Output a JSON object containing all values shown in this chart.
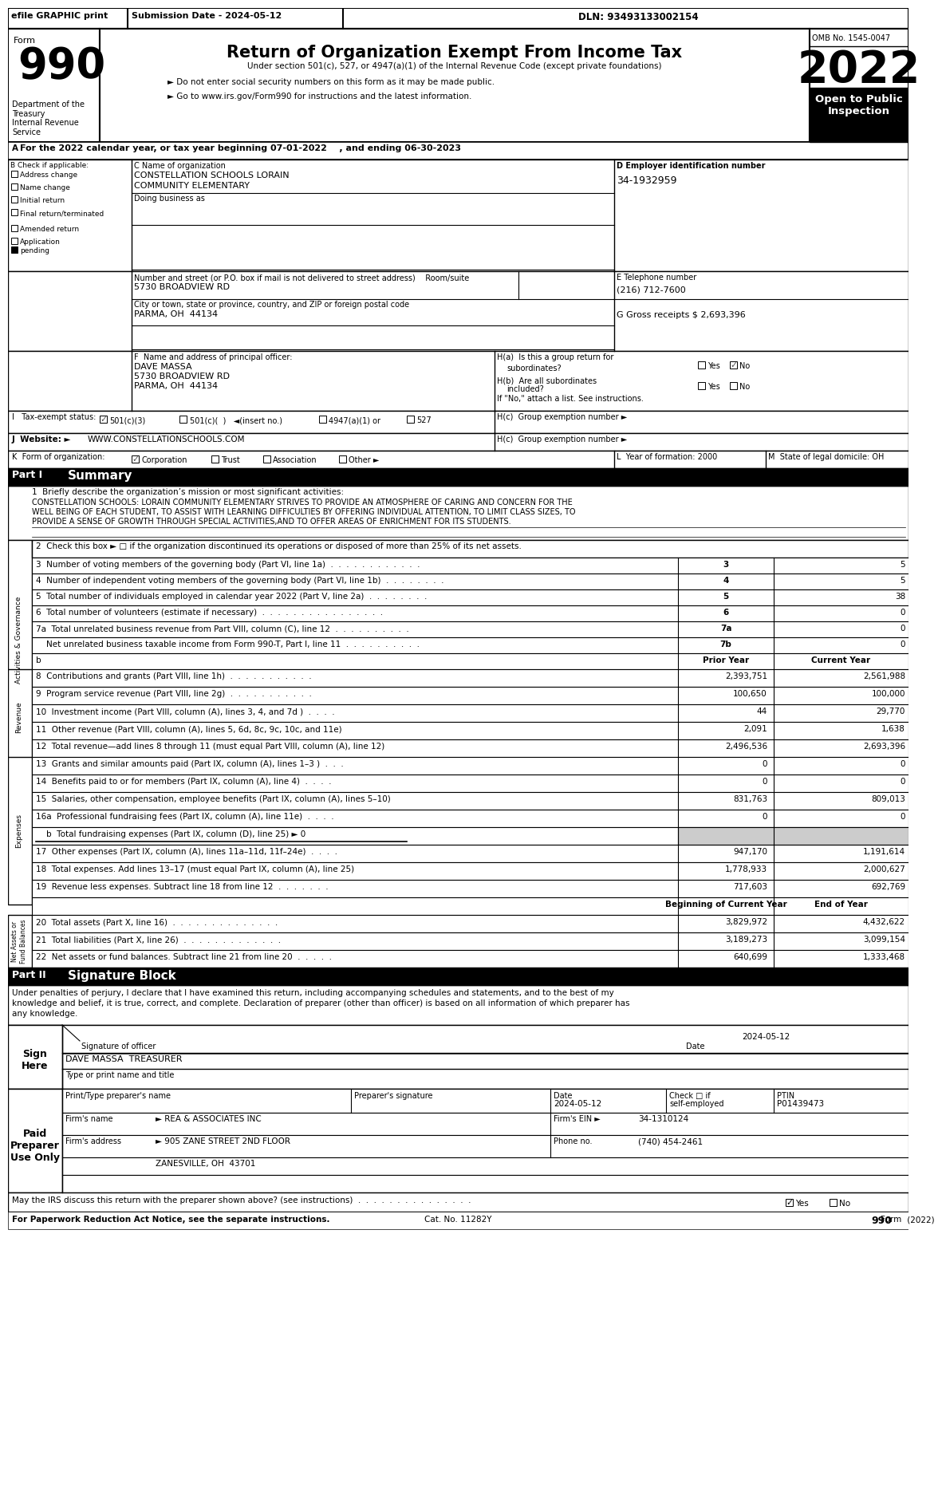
{
  "header_efile": "efile GRAPHIC print",
  "header_submission": "Submission Date - 2024-05-12",
  "header_dln": "DLN: 93493133002154",
  "form_title": "Return of Organization Exempt From Income Tax",
  "subtitle1": "Under section 501(c), 527, or 4947(a)(1) of the Internal Revenue Code (except private foundations)",
  "subtitle2": "► Do not enter social security numbers on this form as it may be made public.",
  "subtitle3": "► Go to www.irs.gov/Form990 for instructions and the latest information.",
  "omb": "OMB No. 1545-0047",
  "year": "2022",
  "open_to_public": "Open to Public\nInspection",
  "dept": "Department of the\nTreasury\nInternal Revenue\nService",
  "line_A": "For the 2022 calendar year, or tax year beginning 07-01-2022    , and ending 06-30-2023",
  "org_name1": "CONSTELLATION SCHOOLS LORAIN",
  "org_name2": "COMMUNITY ELEMENTARY",
  "ein": "34-1932959",
  "street": "5730 BROADVIEW RD",
  "phone": "(216) 712-7600",
  "city": "PARMA, OH  44134",
  "G_label": "G Gross receipts $ 2,693,396",
  "officer_name": "DAVE MASSA",
  "officer_addr1": "5730 BROADVIEW RD",
  "officer_addr2": "PARMA, OH  44134",
  "part1_title": "Part I",
  "part1_summary": "Summary",
  "activity_label": "1  Briefly describe the organization’s mission or most significant activities:",
  "activity_line1": "CONSTELLATION SCHOOLS: LORAIN COMMUNITY ELEMENTARY STRIVES TO PROVIDE AN ATMOSPHERE OF CARING AND CONCERN FOR THE",
  "activity_line2": "WELL BEING OF EACH STUDENT, TO ASSIST WITH LEARNING DIFFICULTIES BY OFFERING INDIVIDUAL ATTENTION, TO LIMIT CLASS SIZES, TO",
  "activity_line3": "PROVIDE A SENSE OF GROWTH THROUGH SPECIAL ACTIVITIES,AND TO OFFER AREAS OF ENRICHMENT FOR ITS STUDENTS.",
  "line2": "2  Check this box ► □ if the organization discontinued its operations or disposed of more than 25% of its net assets.",
  "line3t": "3  Number of voting members of the governing body (Part VI, line 1a)  .  .  .  .  .  .  .  .  .  .  .  .",
  "line3v": "5",
  "line4t": "4  Number of independent voting members of the governing body (Part VI, line 1b)  .  .  .  .  .  .  .  .",
  "line4v": "5",
  "line5t": "5  Total number of individuals employed in calendar year 2022 (Part V, line 2a)  .  .  .  .  .  .  .  .",
  "line5v": "38",
  "line6t": "6  Total number of volunteers (estimate if necessary)  .  .  .  .  .  .  .  .  .  .  .  .  .  .  .  .",
  "line6v": "0",
  "line7at": "7a  Total unrelated business revenue from Part VIII, column (C), line 12  .  .  .  .  .  .  .  .  .  .",
  "line7av": "0",
  "line7bt": "    Net unrelated business taxable income from Form 990-T, Part I, line 11  .  .  .  .  .  .  .  .  .  .",
  "line7bv": "0",
  "col_prior": "Prior Year",
  "col_current": "Current Year",
  "line8t": "8  Contributions and grants (Part VIII, line 1h)  .  .  .  .  .  .  .  .  .  .  .",
  "line8p": "2,393,751",
  "line8c": "2,561,988",
  "line9t": "9  Program service revenue (Part VIII, line 2g)  .  .  .  .  .  .  .  .  .  .  .",
  "line9p": "100,650",
  "line9c": "100,000",
  "line10t": "10  Investment income (Part VIII, column (A), lines 3, 4, and 7d )  .  .  .  .",
  "line10p": "44",
  "line10c": "29,770",
  "line11t": "11  Other revenue (Part VIII, column (A), lines 5, 6d, 8c, 9c, 10c, and 11e)",
  "line11p": "2,091",
  "line11c": "1,638",
  "line12t": "12  Total revenue—add lines 8 through 11 (must equal Part VIII, column (A), line 12)",
  "line12p": "2,496,536",
  "line12c": "2,693,396",
  "line13t": "13  Grants and similar amounts paid (Part IX, column (A), lines 1–3 )  .  .  .",
  "line13p": "0",
  "line13c": "0",
  "line14t": "14  Benefits paid to or for members (Part IX, column (A), line 4)  .  .  .  .",
  "line14p": "0",
  "line14c": "0",
  "line15t": "15  Salaries, other compensation, employee benefits (Part IX, column (A), lines 5–10)",
  "line15p": "831,763",
  "line15c": "809,013",
  "line16at": "16a  Professional fundraising fees (Part IX, column (A), line 11e)  .  .  .  .",
  "line16ap": "0",
  "line16ac": "0",
  "line16bt": "    b  Total fundraising expenses (Part IX, column (D), line 25) ► 0",
  "line17t": "17  Other expenses (Part IX, column (A), lines 11a–11d, 11f–24e)  .  .  .  .",
  "line17p": "947,170",
  "line17c": "1,191,614",
  "line18t": "18  Total expenses. Add lines 13–17 (must equal Part IX, column (A), line 25)",
  "line18p": "1,778,933",
  "line18c": "2,000,627",
  "line19t": "19  Revenue less expenses. Subtract line 18 from line 12  .  .  .  .  .  .  .",
  "line19p": "717,603",
  "line19c": "692,769",
  "col_beginning": "Beginning of Current Year",
  "col_end": "End of Year",
  "line20t": "20  Total assets (Part X, line 16)  .  .  .  .  .  .  .  .  .  .  .  .  .  .",
  "line20b": "3,829,972",
  "line20e": "4,432,622",
  "line21t": "21  Total liabilities (Part X, line 26)  .  .  .  .  .  .  .  .  .  .  .  .  .",
  "line21b": "3,189,273",
  "line21e": "3,099,154",
  "line22t": "22  Net assets or fund balances. Subtract line 21 from line 20  .  .  .  .  .",
  "line22b": "640,699",
  "line22e": "1,333,468",
  "part2_title": "Part II",
  "part2_summary": "Signature Block",
  "sig_text1": "Under penalties of perjury, I declare that I have examined this return, including accompanying schedules and statements, and to the best of my",
  "sig_text2": "knowledge and belief, it is true, correct, and complete. Declaration of preparer (other than officer) is based on all information of which preparer has",
  "sig_text3": "any knowledge.",
  "sig_date": "2024-05-12",
  "sig_name_title": "DAVE MASSA  TREASURER",
  "preparer_ptin": "P01439473",
  "firm_name": "► REA & ASSOCIATES INC",
  "firm_ein": "34-1310124",
  "firm_addr": "► 905 ZANE STREET 2ND FLOOR",
  "firm_city": "ZANESVILLE, OH  43701",
  "firm_phone": "(740) 454-2461",
  "discuss_label": "May the IRS discuss this return with the preparer shown above? (see instructions)  .  .  .  .  .  .  .  .  .  .  .  .  .  .  .",
  "footer1": "For Paperwork Reduction Act Notice, see the separate instructions.",
  "footer_cat": "Cat. No. 11282Y",
  "footer_form": "Form 990 (2022)"
}
